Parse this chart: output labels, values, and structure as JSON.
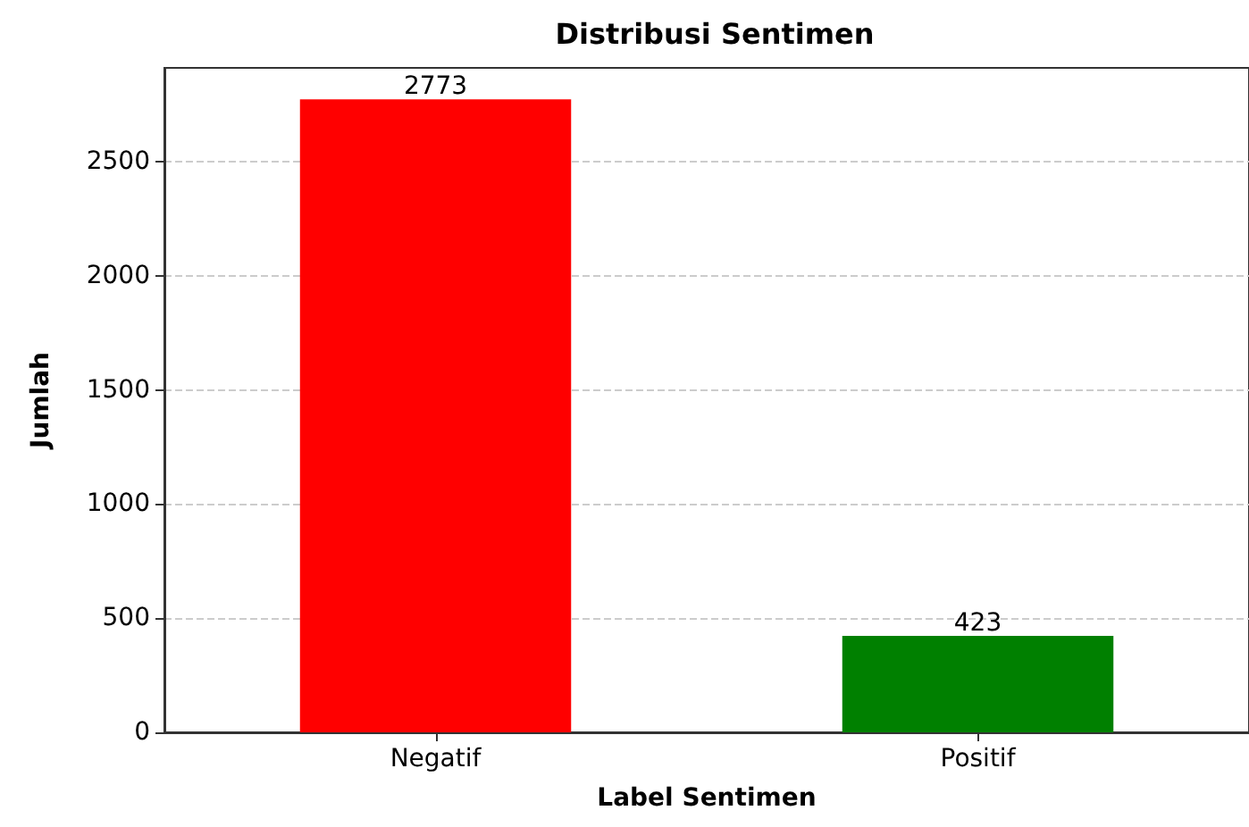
{
  "chart_data": {
    "type": "bar",
    "title": "Distribusi Sentimen",
    "xlabel": "Label Sentimen",
    "ylabel": "Jumlah",
    "categories": [
      "Negatif",
      "Positif"
    ],
    "values": [
      2773,
      423
    ],
    "colors": [
      "#ff0000",
      "#008000"
    ],
    "ylim": [
      0,
      2911
    ],
    "yticks": [
      0,
      500,
      1000,
      1500,
      2000,
      2500
    ],
    "grid": "y",
    "data_labels": true
  }
}
